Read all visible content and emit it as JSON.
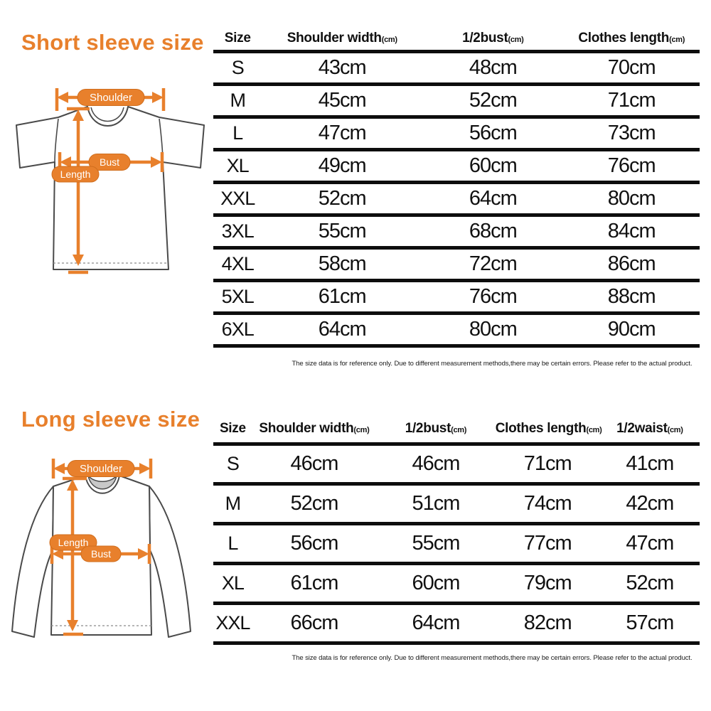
{
  "colors": {
    "accent": "#E8802C",
    "table_line": "#0D0D0D",
    "shirt_outline": "#4A4A4A",
    "collar_fill": "#C8C8C8"
  },
  "diagram_labels": {
    "shoulder": "Shoulder",
    "bust": "Bust",
    "length": "Length"
  },
  "footnote": "The size data is for reference only. Due to different measurement methods,there may be certain errors. Please refer to the actual product.",
  "chart_data": [
    {
      "type": "table",
      "title": "Short sleeve size",
      "columns": [
        {
          "label": "Size",
          "unit": ""
        },
        {
          "label": "Shoulder width",
          "unit": "(cm)"
        },
        {
          "label": "1/2bust",
          "unit": "(cm)"
        },
        {
          "label": "Clothes length",
          "unit": "(cm)"
        }
      ],
      "rows": [
        [
          "S",
          "43cm",
          "48cm",
          "70cm"
        ],
        [
          "M",
          "45cm",
          "52cm",
          "71cm"
        ],
        [
          "L",
          "47cm",
          "56cm",
          "73cm"
        ],
        [
          "XL",
          "49cm",
          "60cm",
          "76cm"
        ],
        [
          "XXL",
          "52cm",
          "64cm",
          "80cm"
        ],
        [
          "3XL",
          "55cm",
          "68cm",
          "84cm"
        ],
        [
          "4XL",
          "58cm",
          "72cm",
          "86cm"
        ],
        [
          "5XL",
          "61cm",
          "76cm",
          "88cm"
        ],
        [
          "6XL",
          "64cm",
          "80cm",
          "90cm"
        ]
      ]
    },
    {
      "type": "table",
      "title": "Long sleeve size",
      "columns": [
        {
          "label": "Size",
          "unit": ""
        },
        {
          "label": "Shoulder width",
          "unit": "(cm)"
        },
        {
          "label": "1/2bust",
          "unit": "(cm)"
        },
        {
          "label": "Clothes length",
          "unit": "(cm)"
        },
        {
          "label": "1/2waist",
          "unit": "(cm)"
        }
      ],
      "rows": [
        [
          "S",
          "46cm",
          "46cm",
          "71cm",
          "41cm"
        ],
        [
          "M",
          "52cm",
          "51cm",
          "74cm",
          "42cm"
        ],
        [
          "L",
          "56cm",
          "55cm",
          "77cm",
          "47cm"
        ],
        [
          "XL",
          "61cm",
          "60cm",
          "79cm",
          "52cm"
        ],
        [
          "XXL",
          "66cm",
          "64cm",
          "82cm",
          "57cm"
        ]
      ]
    }
  ]
}
